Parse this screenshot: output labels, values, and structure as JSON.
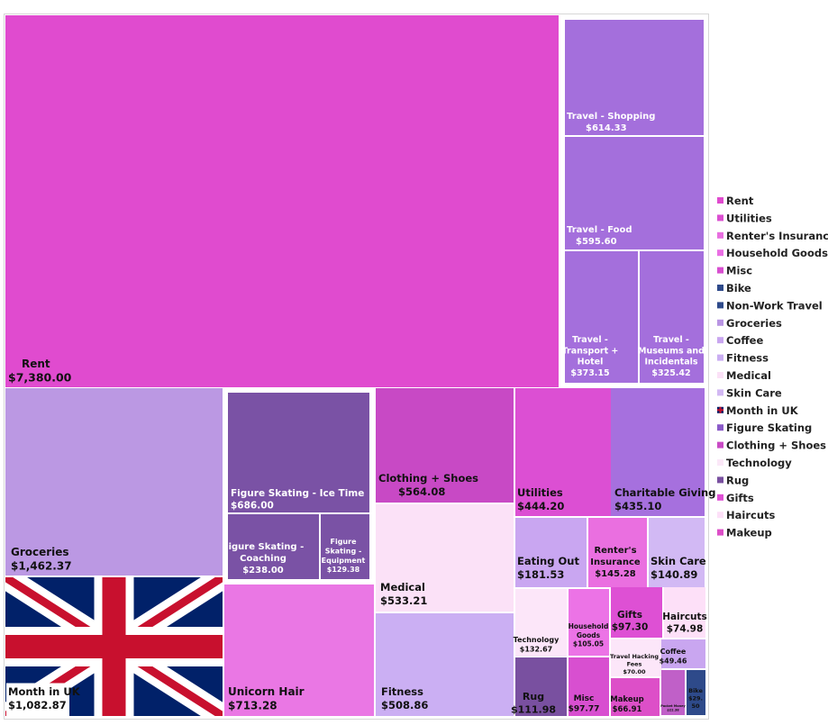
{
  "chart_data": {
    "type": "treemap",
    "title": "",
    "legend": {
      "placement": "right",
      "entries": [
        {
          "name": "Rent",
          "color": "#e04bcf"
        },
        {
          "name": "Utilities",
          "color": "#db4fd1"
        },
        {
          "name": "Renter's Insurance",
          "color": "#e86fe0"
        },
        {
          "name": "Household Goods",
          "color": "#ea6fe4"
        },
        {
          "name": "Misc",
          "color": "#d84fd0"
        },
        {
          "name": "Bike",
          "color": "#2e4a8a"
        },
        {
          "name": "Non-Work Travel",
          "color": "#2e4a8a"
        },
        {
          "name": "Groceries",
          "color": "#b995e3"
        },
        {
          "name": "Coffee",
          "color": "#c9a6f0"
        },
        {
          "name": "Fitness",
          "color": "#caaef2"
        },
        {
          "name": "Medical",
          "color": "#fbe1f7"
        },
        {
          "name": "Skin Care",
          "color": "#d2b8f3"
        },
        {
          "name": "Month in UK",
          "color": "#c8102e",
          "icon": "uk-flag-icon"
        },
        {
          "name": "Figure Skating",
          "color": "#8a5ac8"
        },
        {
          "name": "Clothing + Shoes",
          "color": "#c94ac5"
        },
        {
          "name": "Technology",
          "color": "#fbe8f8"
        },
        {
          "name": "Rug",
          "color": "#7950a0"
        },
        {
          "name": "Gifts",
          "color": "#de50d4"
        },
        {
          "name": "Haircuts",
          "color": "#fde0f8"
        },
        {
          "name": "Makeup",
          "color": "#dd4fc8"
        }
      ]
    },
    "items": [
      {
        "name": "Rent",
        "value": 7380.0,
        "value_label": "$7,380.00",
        "color": "#e04bcf",
        "text_color": "#111111"
      },
      {
        "name": "Travel - Shopping",
        "value": 614.33,
        "value_label": "$614.33",
        "color": "#a46fdc",
        "text_color": "#ffffff"
      },
      {
        "name": "Travel - Food",
        "value": 595.6,
        "value_label": "$595.60",
        "color": "#a46fdc",
        "text_color": "#ffffff"
      },
      {
        "name": "Travel - Transport + Hotel",
        "label_lines": [
          "Travel -",
          "Transport +",
          "Hotel"
        ],
        "value": 373.15,
        "value_label": "$373.15",
        "color": "#a46fdc",
        "text_color": "#ffffff"
      },
      {
        "name": "Travel - Museums and Incidentals",
        "label_lines": [
          "Travel -",
          "Museums and",
          "Incidentals"
        ],
        "value": 325.42,
        "value_label": "$325.42",
        "color": "#a46fdc",
        "text_color": "#ffffff"
      },
      {
        "name": "Groceries",
        "value": 1462.37,
        "value_label": "$1,462.37",
        "color": "#bb98e3",
        "text_color": "#111111"
      },
      {
        "name": "Month in UK",
        "value": 1082.87,
        "value_label": "$1,082.87",
        "color": "#012169",
        "text_color": "#111111",
        "pattern": "uk-flag"
      },
      {
        "name": "Figure Skating - Ice Time",
        "value": 686.0,
        "value_label": "$686.00",
        "color": "#7a52a5",
        "text_color": "#ffffff"
      },
      {
        "name": "Figure Skating - Coaching",
        "label_lines": [
          "Figure Skating -",
          "Coaching"
        ],
        "value": 238.0,
        "value_label": "$238.00",
        "color": "#7a52a5",
        "text_color": "#ffffff"
      },
      {
        "name": "Figure Skating - Equipment",
        "label_lines": [
          "Figure",
          "Skating -",
          "Equipment"
        ],
        "value": 129.38,
        "value_label": "$129.38",
        "color": "#7a52a5",
        "text_color": "#ffffff"
      },
      {
        "name": "Unicorn Hair",
        "value": 713.28,
        "value_label": "$713.28",
        "color": "#ea77e4",
        "text_color": "#111111"
      },
      {
        "name": "Clothing + Shoes",
        "value": 564.08,
        "value_label": "$564.08",
        "color": "#c849c5",
        "text_color": "#111111"
      },
      {
        "name": "Medical",
        "value": 533.21,
        "value_label": "$533.21",
        "color": "#fbe1f7",
        "text_color": "#111111"
      },
      {
        "name": "Fitness",
        "value": 508.86,
        "value_label": "$508.86",
        "color": "#cbaff3",
        "text_color": "#111111"
      },
      {
        "name": "Utilities",
        "value": 444.2,
        "value_label": "$444.20",
        "color": "#dc4fd3",
        "text_color": "#111111"
      },
      {
        "name": "Charitable Giving",
        "value": 435.1,
        "value_label": "$435.10",
        "color": "#a670de",
        "text_color": "#111111"
      },
      {
        "name": "Eating Out",
        "value": 181.53,
        "value_label": "$181.53",
        "color": "#c9a6f1",
        "text_color": "#111111"
      },
      {
        "name": "Renter's Insurance",
        "label_lines": [
          "Renter's",
          "Insurance"
        ],
        "value": 145.28,
        "value_label": "$145.28",
        "color": "#ea6fe0",
        "text_color": "#111111"
      },
      {
        "name": "Skin Care",
        "value": 140.89,
        "value_label": "$140.89",
        "color": "#d2b9f4",
        "text_color": "#111111"
      },
      {
        "name": "Technology",
        "value": 132.67,
        "value_label": "$132.67",
        "color": "#fce6f9",
        "text_color": "#111111"
      },
      {
        "name": "Household Goods",
        "label_lines": [
          "Household",
          "Goods"
        ],
        "value": 105.05,
        "value_label": "$105.05",
        "color": "#ec73e6",
        "text_color": "#111111"
      },
      {
        "name": "Gifts",
        "value": 97.3,
        "value_label": "$97.30",
        "color": "#de50d4",
        "text_color": "#111111"
      },
      {
        "name": "Haircuts",
        "value": 74.98,
        "value_label": "$74.98",
        "color": "#fde0f8",
        "text_color": "#111111"
      },
      {
        "name": "Travel Hacking Fees",
        "label_lines": [
          "Travel Hacking",
          "Fees"
        ],
        "value": 70.0,
        "value_label": "$70.00",
        "color": "#fce6f9",
        "text_color": "#111111"
      },
      {
        "name": "Coffee",
        "value": 49.46,
        "value_label": "$49.46",
        "color": "#c9a6f0",
        "text_color": "#111111"
      },
      {
        "name": "Rug",
        "value": 111.98,
        "value_label": "$111.98",
        "color": "#7950a0",
        "text_color": "#111111"
      },
      {
        "name": "Misc",
        "value": 97.77,
        "value_label": "$97.77",
        "color": "#d84fd0",
        "text_color": "#111111"
      },
      {
        "name": "Makeup",
        "value": 66.91,
        "value_label": "$66.91",
        "color": "#dd4fc8",
        "text_color": "#111111"
      },
      {
        "name": "Pocket Money",
        "value": 22.38,
        "value_label": "$22.38",
        "color": "#c060c8",
        "text_color": "#111111"
      },
      {
        "name": "Bike",
        "label_lines": [
          "Bike",
          "$29.",
          "50"
        ],
        "value": 29.5,
        "value_label": "",
        "color": "#2e4a8a",
        "text_color": "#111111"
      }
    ]
  }
}
